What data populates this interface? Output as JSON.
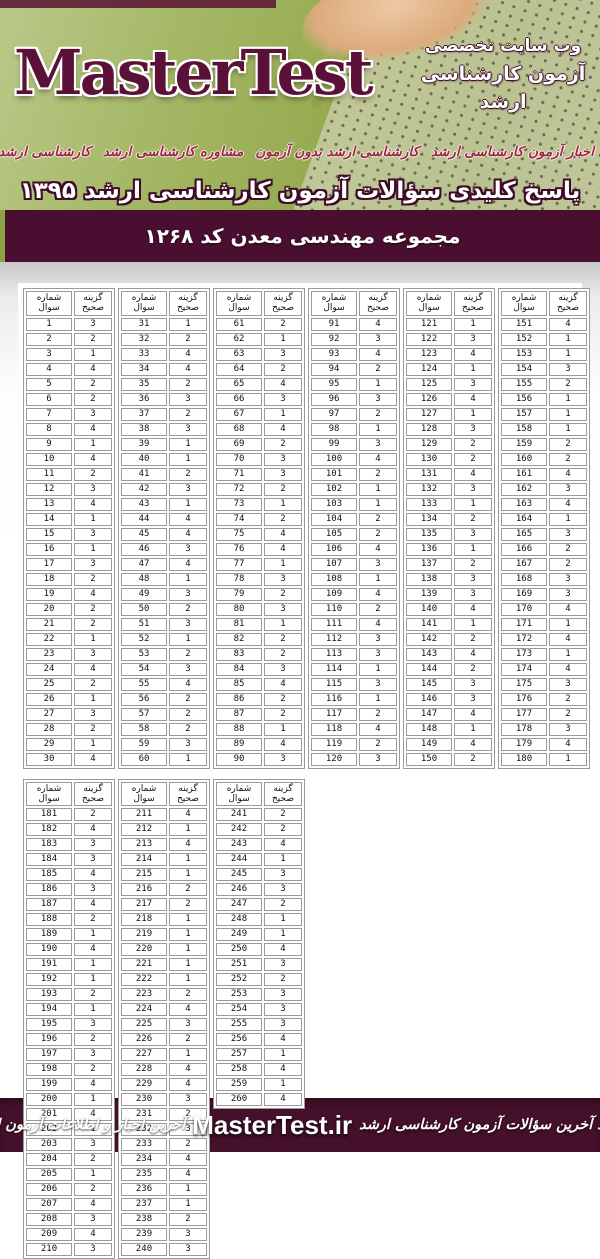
{
  "header": {
    "site_title": "MasterTest",
    "tagline_line1": "وب سایت تخصصی",
    "tagline_line2": "آزمون کارشناسی ارشد",
    "menu_items": [
      {
        "label": "اخبار آزمون کارشناسی ارشد"
      },
      {
        "label": "کارشناسی ارشد بدون آزمون"
      },
      {
        "label": "مشاوره کارشناسی ارشد"
      },
      {
        "label": "کارشناسی ارشد خارج از کشور"
      }
    ],
    "headline": "پاسخ کلیدی سؤالات آزمون کارشناسی ارشد ۱۳۹۵"
  },
  "section": {
    "title": "مجموعه مهندسی معدن کد ۱۲۶۸"
  },
  "colors": {
    "maroon_bar": "#4a0f30",
    "footer_maroon": "#44102a",
    "header_green": "#96ab50",
    "logo_maroon": "#5b1038",
    "menu_red": "#9c2445"
  },
  "answer_key": {
    "col_question": "شماره سوال",
    "col_answer": "گزینه صحیح",
    "blocks": [
      {
        "tables": [
          {
            "start": 1,
            "answers": [
              3,
              2,
              1,
              4,
              2,
              2,
              3,
              4,
              1,
              4,
              2,
              3,
              4,
              1,
              3,
              1,
              3,
              2,
              4,
              2,
              2,
              1,
              3,
              4,
              2,
              1,
              3,
              2,
              1,
              4
            ]
          },
          {
            "start": 31,
            "answers": [
              1,
              2,
              4,
              4,
              2,
              3,
              2,
              3,
              1,
              1,
              2,
              3,
              1,
              4,
              4,
              3,
              4,
              1,
              3,
              2,
              3,
              1,
              2,
              3,
              4,
              2,
              2,
              2,
              3,
              1
            ]
          },
          {
            "start": 61,
            "answers": [
              2,
              1,
              3,
              2,
              4,
              3,
              1,
              4,
              2,
              3,
              3,
              2,
              1,
              2,
              4,
              4,
              1,
              3,
              2,
              3,
              1,
              2,
              2,
              3,
              4,
              2,
              2,
              1,
              4,
              3
            ]
          },
          {
            "start": 91,
            "answers": [
              4,
              3,
              4,
              2,
              1,
              3,
              2,
              1,
              3,
              4,
              2,
              1,
              1,
              2,
              2,
              4,
              3,
              1,
              4,
              2,
              4,
              3,
              3,
              1,
              3,
              1,
              2,
              4,
              2,
              3
            ]
          },
          {
            "start": 121,
            "answers": [
              1,
              3,
              4,
              1,
              3,
              4,
              1,
              3,
              2,
              2,
              4,
              3,
              1,
              2,
              3,
              1,
              2,
              3,
              3,
              4,
              1,
              2,
              4,
              2,
              3,
              3,
              4,
              1,
              4,
              2
            ]
          },
          {
            "start": 151,
            "answers": [
              4,
              1,
              1,
              3,
              2,
              1,
              1,
              1,
              2,
              2,
              4,
              3,
              4,
              1,
              3,
              2,
              2,
              3,
              3,
              4,
              1,
              4,
              1,
              4,
              3,
              2,
              2,
              3,
              4,
              1
            ]
          }
        ]
      },
      {
        "tables": [
          {
            "start": 181,
            "answers": [
              2,
              4,
              3,
              3,
              4,
              3,
              4,
              2,
              1,
              4,
              1,
              1,
              2,
              1,
              3,
              2,
              3,
              2,
              4,
              1,
              4,
              1,
              3,
              2,
              1,
              2,
              4,
              3,
              4,
              3
            ]
          },
          {
            "start": 211,
            "answers": [
              4,
              1,
              4,
              1,
              1,
              2,
              2,
              1,
              1,
              1,
              1,
              1,
              2,
              4,
              3,
              2,
              1,
              4,
              4,
              3,
              2,
              3,
              2,
              4,
              4,
              1,
              1,
              2,
              3,
              3
            ]
          },
          {
            "start": 241,
            "answers": [
              2,
              2,
              4,
              1,
              3,
              3,
              2,
              1,
              1,
              4,
              3,
              2,
              3,
              3,
              3,
              4,
              1,
              4,
              1,
              4
            ]
          }
        ]
      }
    ]
  },
  "footer": {
    "left_text": "دانلود آخرین سؤالات آزمون کارشناسی ارشد",
    "brand": "MasterTest.ir",
    "right_text": "آخرین اخبار و اطلاعات آزمون ارشد"
  }
}
